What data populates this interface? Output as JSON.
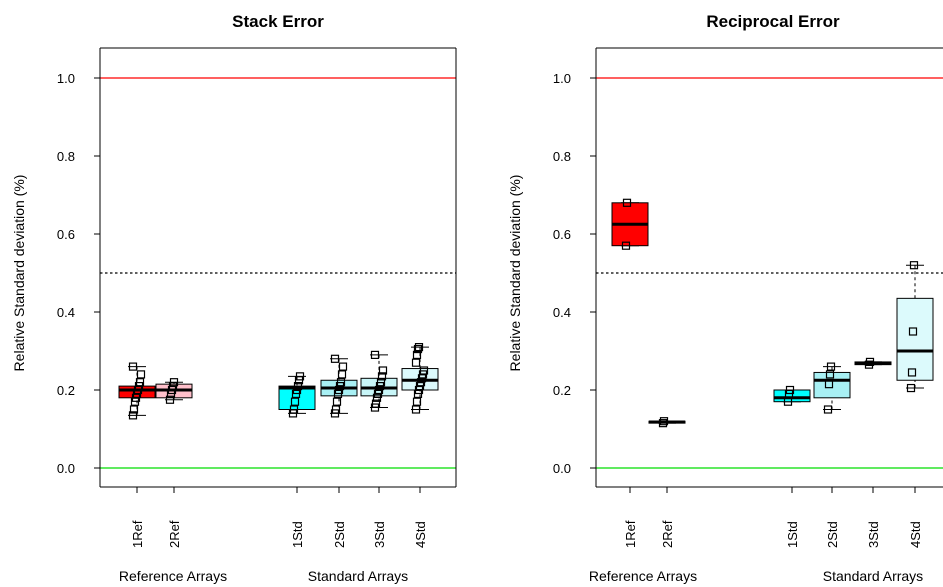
{
  "chart_data": [
    {
      "type": "box",
      "title": "Stack Error",
      "ylabel": "Relative Standard deviation (%)",
      "ylim": [
        0,
        1
      ],
      "yticks": [
        "0.0",
        "0.2",
        "0.4",
        "0.6",
        "0.8",
        "1.0"
      ],
      "reference_lines": [
        {
          "y": 1.0,
          "color": "#ff0000",
          "style": "solid"
        },
        {
          "y": 0.5,
          "color": "#000000",
          "style": "dotted"
        },
        {
          "y": 0.0,
          "color": "#00dd00",
          "style": "solid"
        }
      ],
      "group_labels": [
        "Reference Arrays",
        "Standard Arrays"
      ],
      "boxes": [
        {
          "label": "1Ref",
          "slot": 1,
          "fill": "#ff0000",
          "q1": 0.18,
          "median": 0.2,
          "q3": 0.21,
          "wlo": 0.135,
          "whi": 0.26,
          "points": [
            0.135,
            0.15,
            0.17,
            0.18,
            0.19,
            0.2,
            0.21,
            0.22,
            0.24,
            0.26
          ]
        },
        {
          "label": "2Ref",
          "slot": 2,
          "fill": "#ffc0cb",
          "q1": 0.18,
          "median": 0.2,
          "q3": 0.215,
          "wlo": 0.175,
          "whi": 0.22,
          "points": [
            0.175,
            0.19,
            0.2,
            0.21,
            0.22
          ]
        },
        {
          "label": "1Std",
          "slot": 5,
          "fill": "#00ffff",
          "q1": 0.15,
          "median": 0.205,
          "q3": 0.21,
          "wlo": 0.14,
          "whi": 0.235,
          "points": [
            0.14,
            0.15,
            0.17,
            0.19,
            0.2,
            0.21,
            0.225,
            0.235
          ]
        },
        {
          "label": "2Std",
          "slot": 6,
          "fill": "#a8f0f4",
          "q1": 0.185,
          "median": 0.205,
          "q3": 0.225,
          "wlo": 0.14,
          "whi": 0.28,
          "points": [
            0.14,
            0.15,
            0.17,
            0.19,
            0.2,
            0.21,
            0.22,
            0.24,
            0.26,
            0.28
          ]
        },
        {
          "label": "3Std",
          "slot": 7,
          "fill": "#c8f6f8",
          "q1": 0.185,
          "median": 0.205,
          "q3": 0.23,
          "wlo": 0.155,
          "whi": 0.29,
          "points": [
            0.155,
            0.165,
            0.18,
            0.19,
            0.2,
            0.21,
            0.22,
            0.235,
            0.25,
            0.29
          ]
        },
        {
          "label": "4Std",
          "slot": 8,
          "fill": "#dcfafc",
          "q1": 0.2,
          "median": 0.225,
          "q3": 0.255,
          "wlo": 0.15,
          "whi": 0.31,
          "points": [
            0.15,
            0.17,
            0.19,
            0.2,
            0.21,
            0.22,
            0.23,
            0.24,
            0.25,
            0.27,
            0.29,
            0.305,
            0.31
          ]
        }
      ]
    },
    {
      "type": "box",
      "title": "Reciprocal Error",
      "ylabel": "Relative Standard deviation (%)",
      "ylim": [
        0,
        1
      ],
      "yticks": [
        "0.0",
        "0.2",
        "0.4",
        "0.6",
        "0.8",
        "1.0"
      ],
      "reference_lines": [
        {
          "y": 1.0,
          "color": "#ff0000",
          "style": "solid"
        },
        {
          "y": 0.5,
          "color": "#000000",
          "style": "dotted"
        },
        {
          "y": 0.0,
          "color": "#00dd00",
          "style": "solid"
        }
      ],
      "group_labels": [
        "Reference Arrays",
        "Standard Arrays"
      ],
      "boxes": [
        {
          "label": "1Ref",
          "slot": 1,
          "fill": "#ff0000",
          "q1": 0.57,
          "median": 0.625,
          "q3": 0.68,
          "wlo": 0.57,
          "whi": 0.68,
          "points": [
            0.57,
            0.68
          ]
        },
        {
          "label": "2Ref",
          "slot": 2,
          "fill": "#ffc0cb",
          "q1": 0.115,
          "median": 0.118,
          "q3": 0.12,
          "wlo": 0.115,
          "whi": 0.12,
          "points": [
            0.115,
            0.12
          ]
        },
        {
          "label": "1Std",
          "slot": 5,
          "fill": "#00ffff",
          "q1": 0.17,
          "median": 0.18,
          "q3": 0.2,
          "wlo": 0.17,
          "whi": 0.2,
          "points": [
            0.17,
            0.19,
            0.2
          ]
        },
        {
          "label": "2Std",
          "slot": 6,
          "fill": "#a8f0f4",
          "q1": 0.18,
          "median": 0.225,
          "q3": 0.245,
          "wlo": 0.15,
          "whi": 0.26,
          "points": [
            0.15,
            0.215,
            0.24,
            0.26
          ]
        },
        {
          "label": "3Std",
          "slot": 7,
          "fill": "#c8f6f8",
          "q1": 0.265,
          "median": 0.268,
          "q3": 0.272,
          "wlo": 0.265,
          "whi": 0.272,
          "points": [
            0.265,
            0.272
          ]
        },
        {
          "label": "4Std",
          "slot": 8,
          "fill": "#dcfafc",
          "q1": 0.225,
          "median": 0.3,
          "q3": 0.435,
          "wlo": 0.205,
          "whi": 0.52,
          "points": [
            0.205,
            0.245,
            0.35,
            0.52
          ]
        }
      ]
    }
  ]
}
